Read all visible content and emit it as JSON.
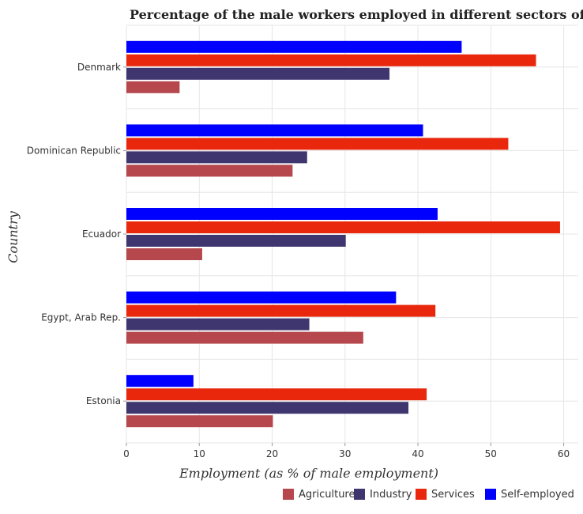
{
  "chart_data": {
    "type": "bar",
    "orientation": "horizontal",
    "title": "Percentage of the male workers employed in different sectors of an e",
    "xlabel": "Employment (as % of male employment)",
    "ylabel": "Country",
    "xlim": [
      0,
      62
    ],
    "xticks": [
      0,
      10,
      20,
      30,
      40,
      50,
      60
    ],
    "grid": true,
    "legend_position": "bottom-right",
    "categories": [
      "Denmark",
      "Dominican Republic",
      "Ecuador",
      "Egypt, Arab Rep.",
      "Estonia"
    ],
    "series": [
      {
        "name": "Agriculture",
        "color": "#b5474d",
        "values": [
          7.3,
          22.8,
          10.4,
          32.5,
          20.1
        ]
      },
      {
        "name": "Industry",
        "color": "#40366f",
        "values": [
          36.1,
          24.8,
          30.1,
          25.1,
          38.7
        ]
      },
      {
        "name": "Services",
        "color": "#e8270d",
        "values": [
          56.2,
          52.4,
          59.5,
          42.4,
          41.2
        ]
      },
      {
        "name": "Self-employed",
        "color": "#0000ff",
        "values": [
          46.0,
          40.7,
          42.7,
          37.0,
          9.2
        ]
      }
    ]
  }
}
